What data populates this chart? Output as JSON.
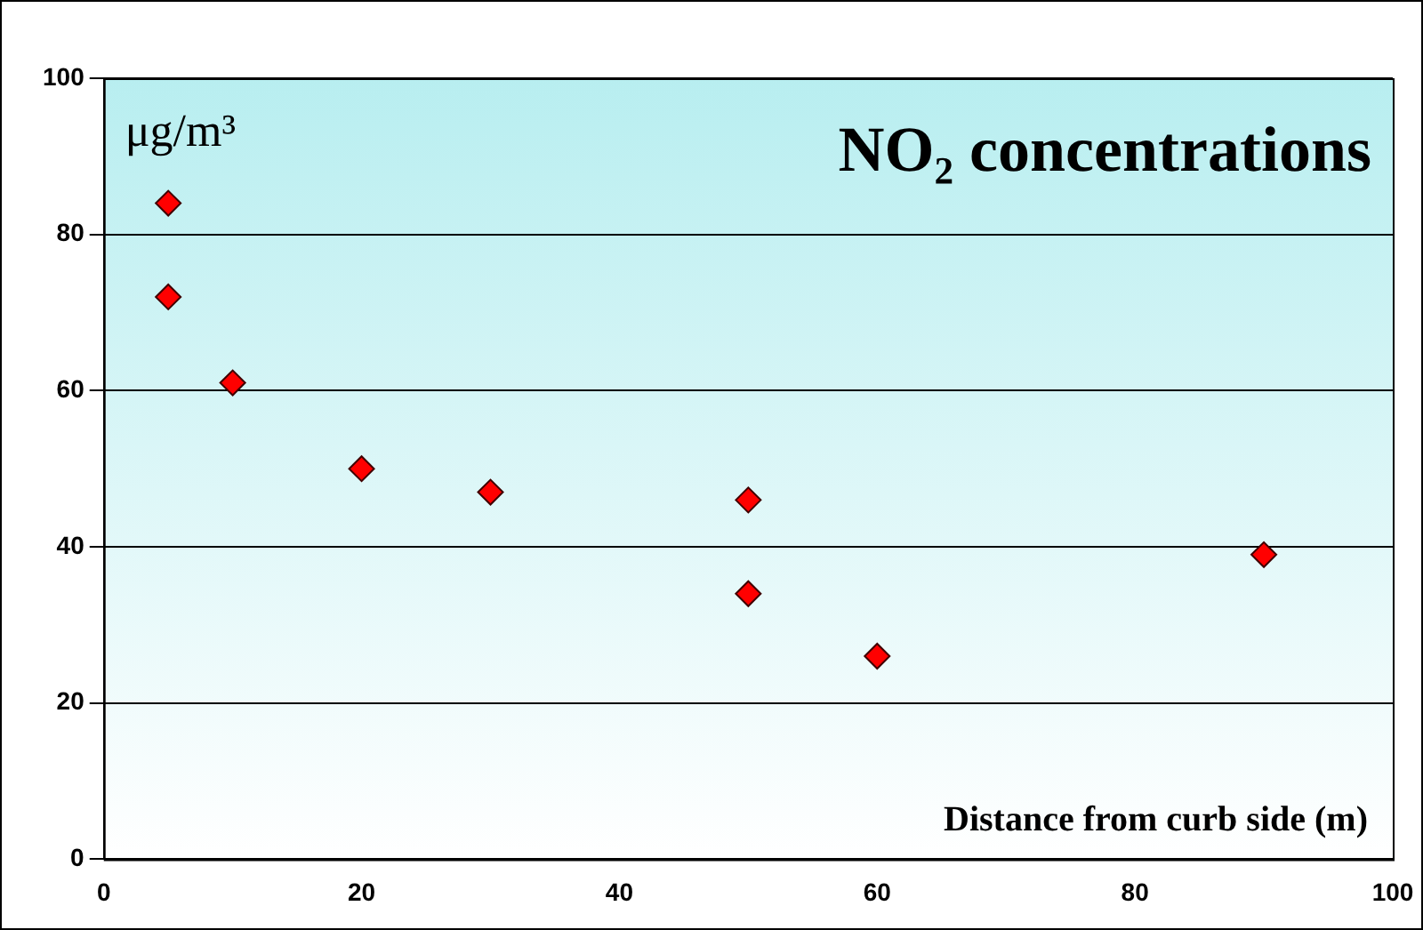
{
  "chart_data": {
    "type": "scatter",
    "title": "NO₂ concentrations",
    "ylabel": "μg/m³",
    "xlabel": "Distance from curb side (m)",
    "x": [
      5,
      5,
      10,
      20,
      30,
      50,
      50,
      60,
      90
    ],
    "values": [
      84,
      72,
      61,
      50,
      47,
      46,
      34,
      26,
      39
    ],
    "color": "#ff0000",
    "xlim": [
      0,
      100
    ],
    "xticks": [
      0,
      20,
      40,
      60,
      80,
      100
    ],
    "ylim": [
      0,
      100
    ],
    "yticks": [
      0,
      20,
      40,
      60,
      80,
      100
    ],
    "grid": "y",
    "legend": false,
    "marker": "diamond"
  }
}
